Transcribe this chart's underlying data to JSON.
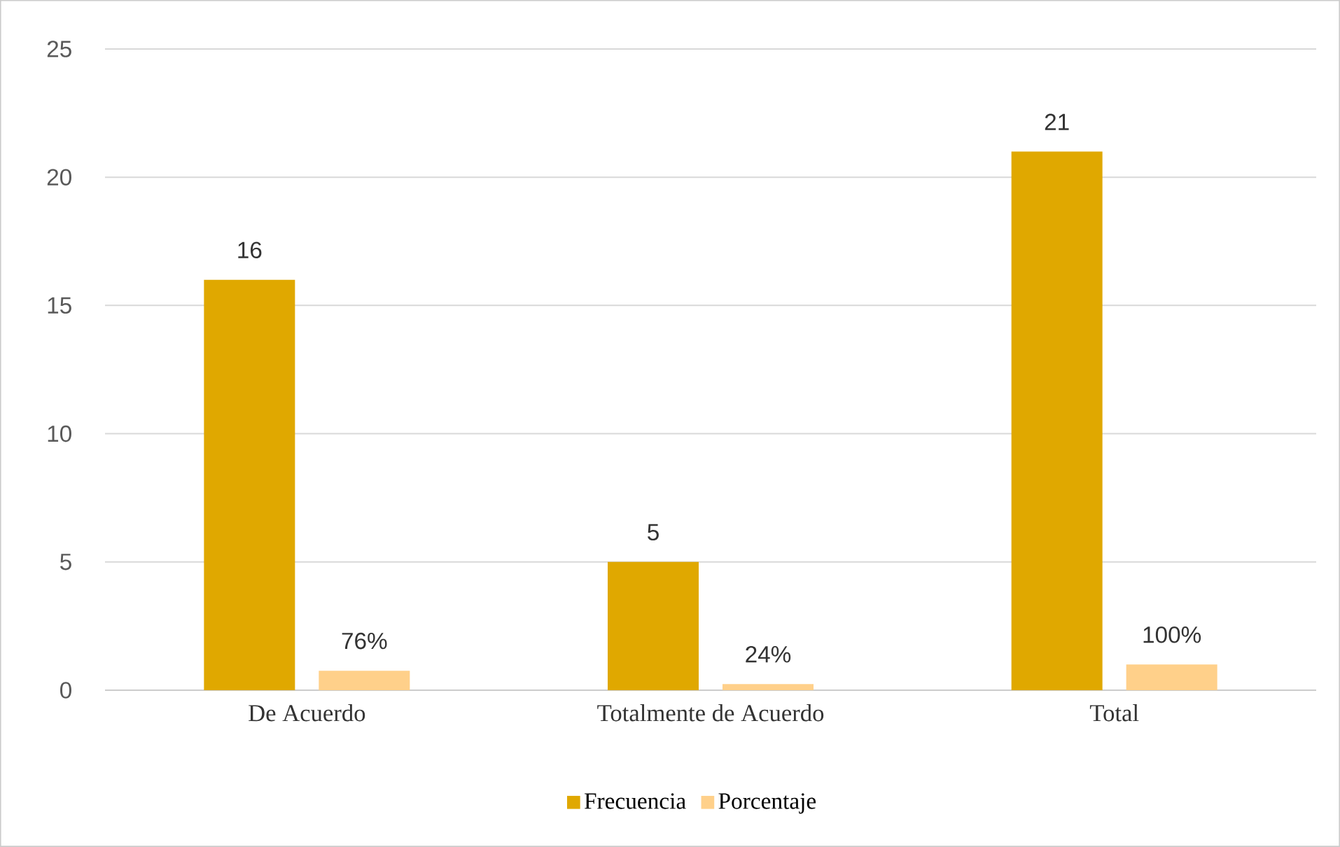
{
  "chart_data": {
    "type": "bar",
    "categories": [
      "De Acuerdo",
      "Totalmente de Acuerdo",
      "Total"
    ],
    "series": [
      {
        "name": "Frecuencia",
        "color": "#e0a800",
        "values": [
          16,
          5,
          21
        ],
        "value_labels": [
          "16",
          "5",
          "21"
        ]
      },
      {
        "name": "Porcentaje",
        "color": "#ffd08a",
        "values": [
          0.76,
          0.24,
          1.0
        ],
        "value_labels": [
          "76%",
          "24%",
          "100%"
        ]
      }
    ],
    "ylim": [
      0,
      25
    ],
    "yticks": [
      0,
      5,
      10,
      15,
      20,
      25
    ],
    "grid": "y",
    "legend": "bottom"
  }
}
